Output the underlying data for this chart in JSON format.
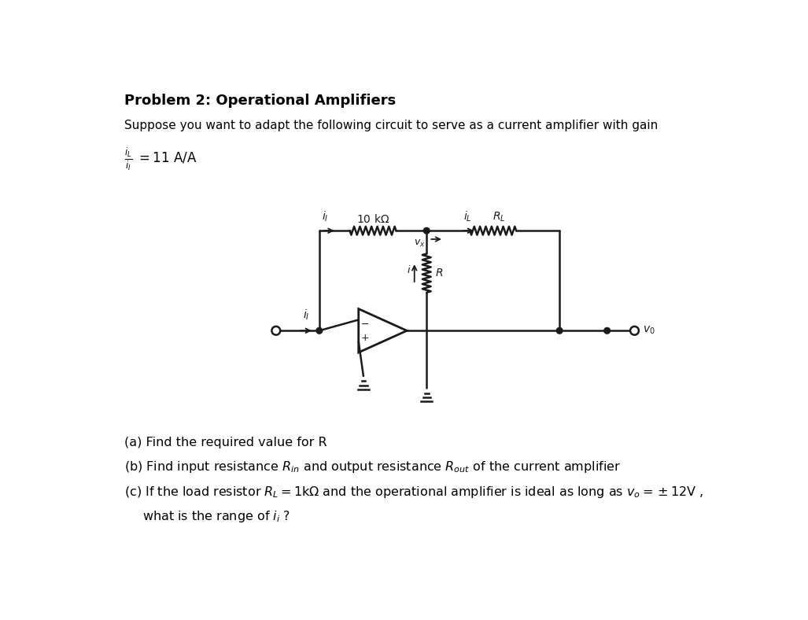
{
  "bg_color": "#ffffff",
  "text_color": "#000000",
  "circuit_color": "#1a1a1a",
  "title": "Problem 2: Operational Amplifiers",
  "line1": "Suppose you want to adapt the following circuit to serve as a current amplifier with gain",
  "part_a": "(a) Find the required value for R",
  "part_b": "(b) Find input resistance $R_{in}$ and output resistance $R_{out}$ of the current amplifier",
  "part_c": "(c) If the load resistor $R_L = 1\\mathrm{k}\\Omega$ and the operational amplifier is ideal as long as $v_o = \\pm 12\\mathrm{V}$ ,",
  "part_c2": "    what is the range of $i_i$ ?"
}
